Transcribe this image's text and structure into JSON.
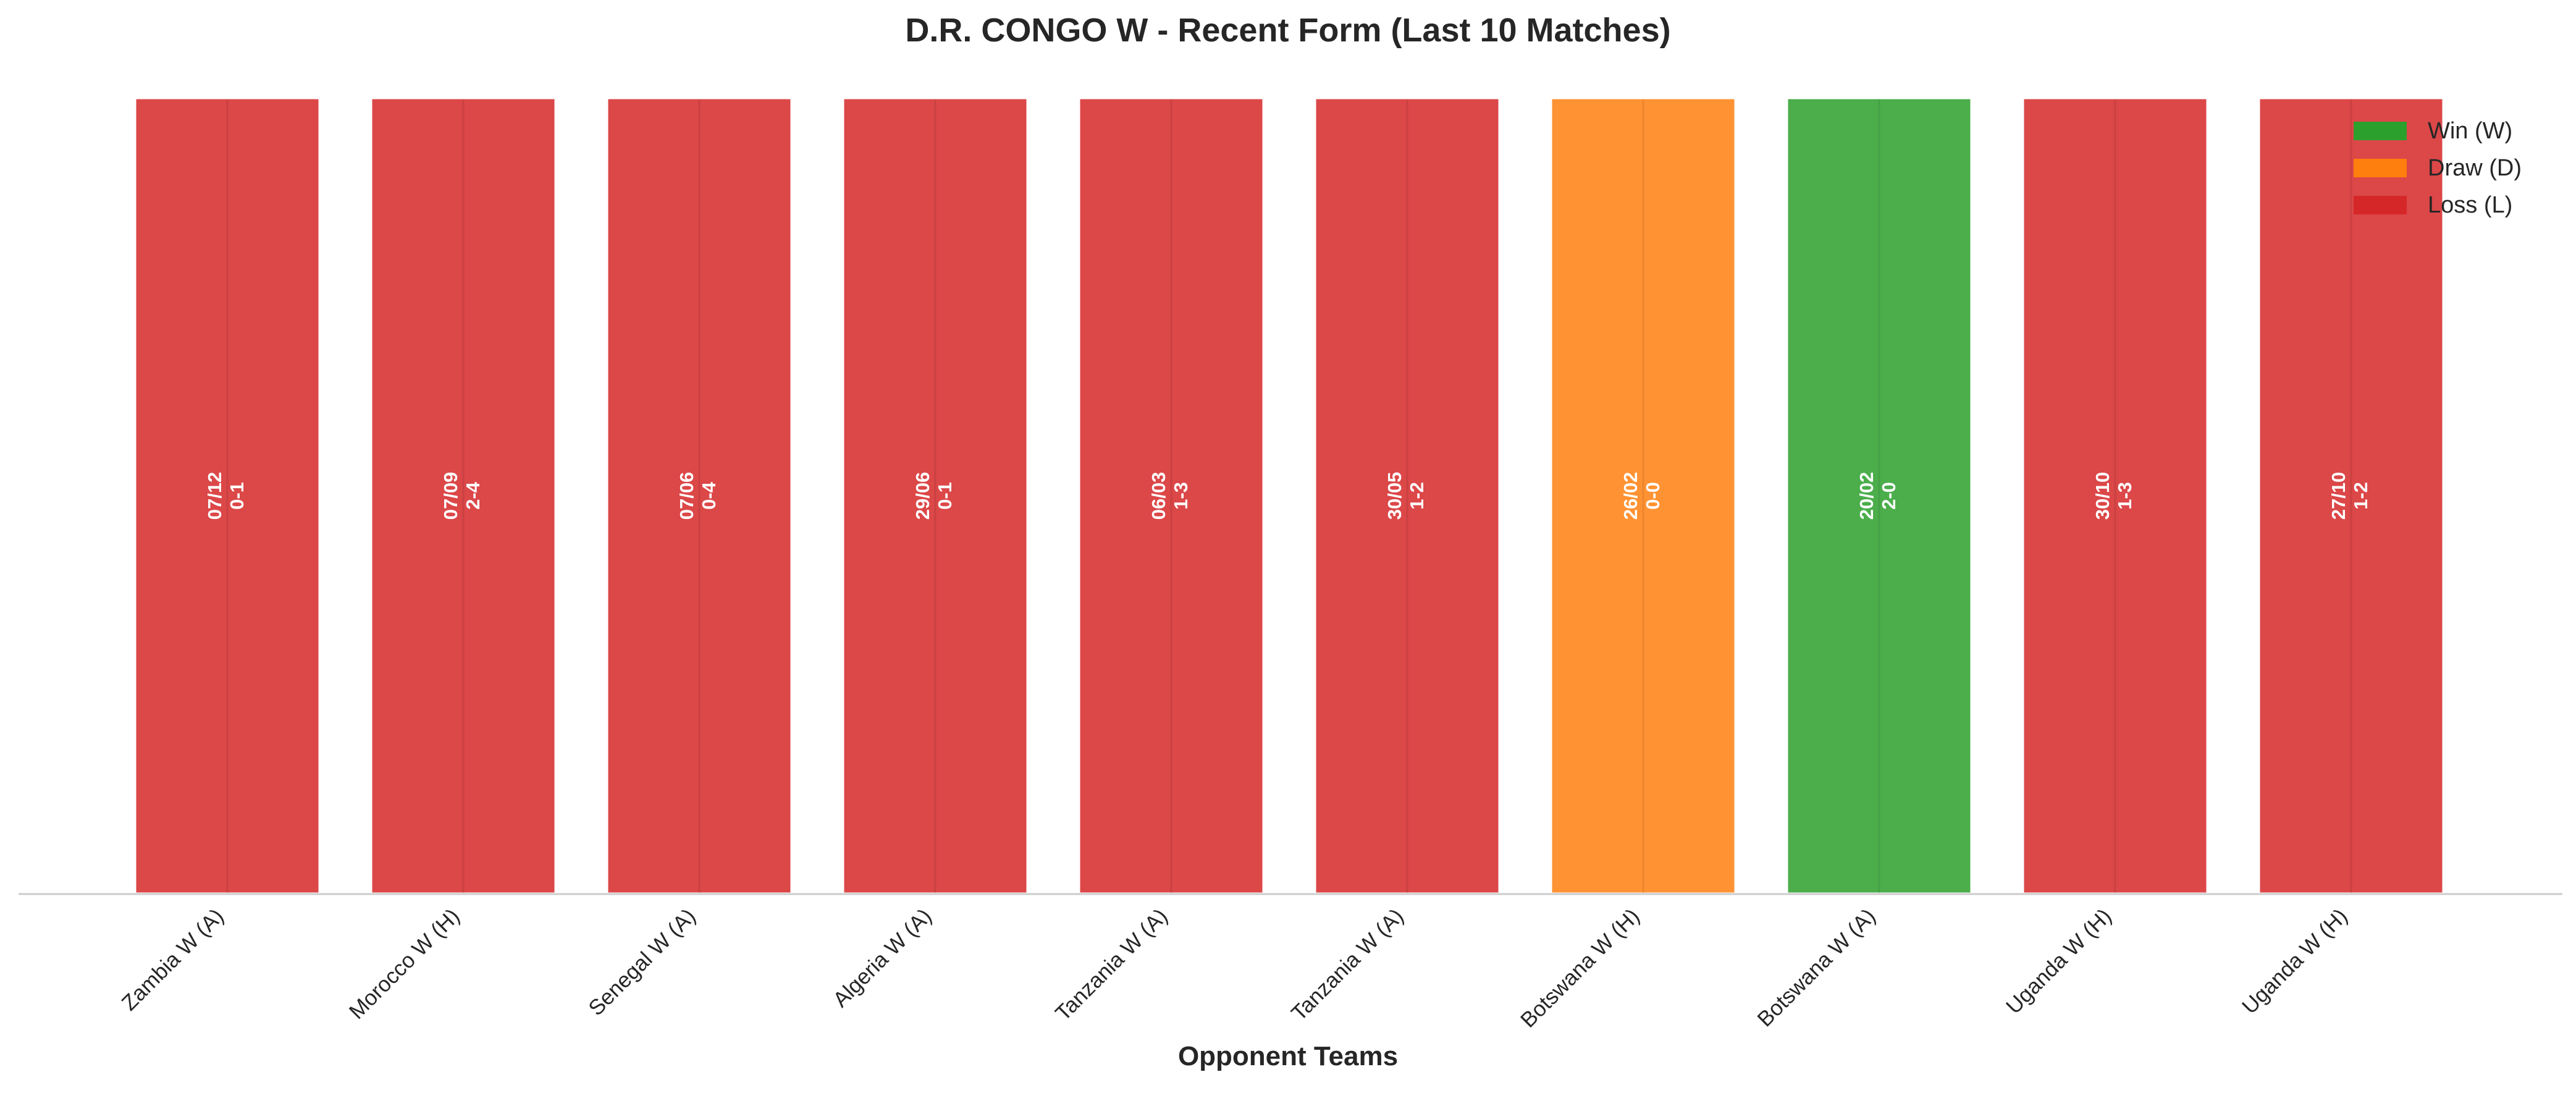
{
  "chart_data": {
    "type": "bar",
    "title": "D.R. CONGO W - Recent Form (Last 10 Matches)",
    "xlabel": "Opponent Teams",
    "ylabel": "",
    "grid": false,
    "legend_position": "top-right",
    "categories": [
      "Zambia W (A)",
      "Morocco W (H)",
      "Senegal W (A)",
      "Algeria W (A)",
      "Tanzania W (A)",
      "Tanzania W (A)",
      "Botswana W (H)",
      "Botswana W (A)",
      "Uganda W (H)",
      "Uganda W (H)"
    ],
    "values": [
      1,
      1,
      1,
      1,
      1,
      1,
      1,
      1,
      1,
      1
    ],
    "results": [
      "L",
      "L",
      "L",
      "L",
      "L",
      "L",
      "D",
      "W",
      "L",
      "L"
    ],
    "dates": [
      "07/12",
      "07/09",
      "07/06",
      "29/06",
      "06/03",
      "30/05",
      "26/02",
      "20/02",
      "30/10",
      "27/10"
    ],
    "scores": [
      "0-1",
      "2-4",
      "0-4",
      "0-1",
      "1-3",
      "1-2",
      "0-0",
      "2-0",
      "1-3",
      "1-2"
    ],
    "legend": [
      {
        "key": "W",
        "label": "Win (W)",
        "color": "#2ca02c"
      },
      {
        "key": "D",
        "label": "Draw (D)",
        "color": "#ff7f0e"
      },
      {
        "key": "L",
        "label": "Loss (L)",
        "color": "#d62728"
      }
    ]
  }
}
